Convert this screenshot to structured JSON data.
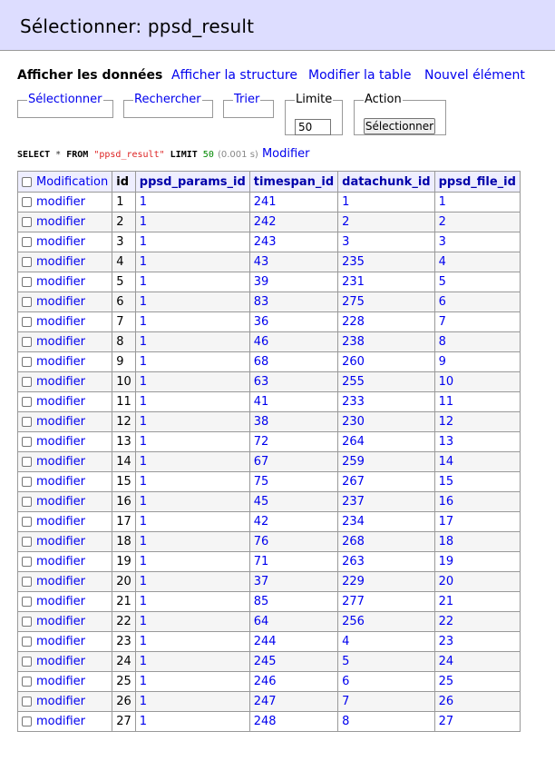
{
  "header": {
    "title": "Sélectionner: ppsd_result"
  },
  "nav": {
    "show_data": "Afficher les données",
    "show_structure": "Afficher la structure",
    "alter_table": "Modifier la table",
    "new_item": "Nouvel élément"
  },
  "filters": {
    "select": "Sélectionner",
    "search": "Rechercher",
    "sort": "Trier",
    "limit_label": "Limite",
    "limit_value": "50",
    "action_label": "Action",
    "action_button": "Sélectionner"
  },
  "query": {
    "select_kw": "SELECT",
    "star": "*",
    "from_kw": "FROM",
    "table": "\"ppsd_result\"",
    "limit_kw": "LIMIT",
    "limit_num": "50",
    "time": "(0.001 s)",
    "edit_link": "Modifier"
  },
  "table": {
    "columns": [
      "Modification",
      "id",
      "ppsd_params_id",
      "timespan_id",
      "datachunk_id",
      "ppsd_file_id"
    ],
    "edit_label": "modifier",
    "rows": [
      [
        1,
        1,
        241,
        1,
        1
      ],
      [
        2,
        1,
        242,
        2,
        2
      ],
      [
        3,
        1,
        243,
        3,
        3
      ],
      [
        4,
        1,
        43,
        235,
        4
      ],
      [
        5,
        1,
        39,
        231,
        5
      ],
      [
        6,
        1,
        83,
        275,
        6
      ],
      [
        7,
        1,
        36,
        228,
        7
      ],
      [
        8,
        1,
        46,
        238,
        8
      ],
      [
        9,
        1,
        68,
        260,
        9
      ],
      [
        10,
        1,
        63,
        255,
        10
      ],
      [
        11,
        1,
        41,
        233,
        11
      ],
      [
        12,
        1,
        38,
        230,
        12
      ],
      [
        13,
        1,
        72,
        264,
        13
      ],
      [
        14,
        1,
        67,
        259,
        14
      ],
      [
        15,
        1,
        75,
        267,
        15
      ],
      [
        16,
        1,
        45,
        237,
        16
      ],
      [
        17,
        1,
        42,
        234,
        17
      ],
      [
        18,
        1,
        76,
        268,
        18
      ],
      [
        19,
        1,
        71,
        263,
        19
      ],
      [
        20,
        1,
        37,
        229,
        20
      ],
      [
        21,
        1,
        85,
        277,
        21
      ],
      [
        22,
        1,
        64,
        256,
        22
      ],
      [
        23,
        1,
        244,
        4,
        23
      ],
      [
        24,
        1,
        245,
        5,
        24
      ],
      [
        25,
        1,
        246,
        6,
        25
      ],
      [
        26,
        1,
        247,
        7,
        26
      ],
      [
        27,
        1,
        248,
        8,
        27
      ]
    ]
  }
}
